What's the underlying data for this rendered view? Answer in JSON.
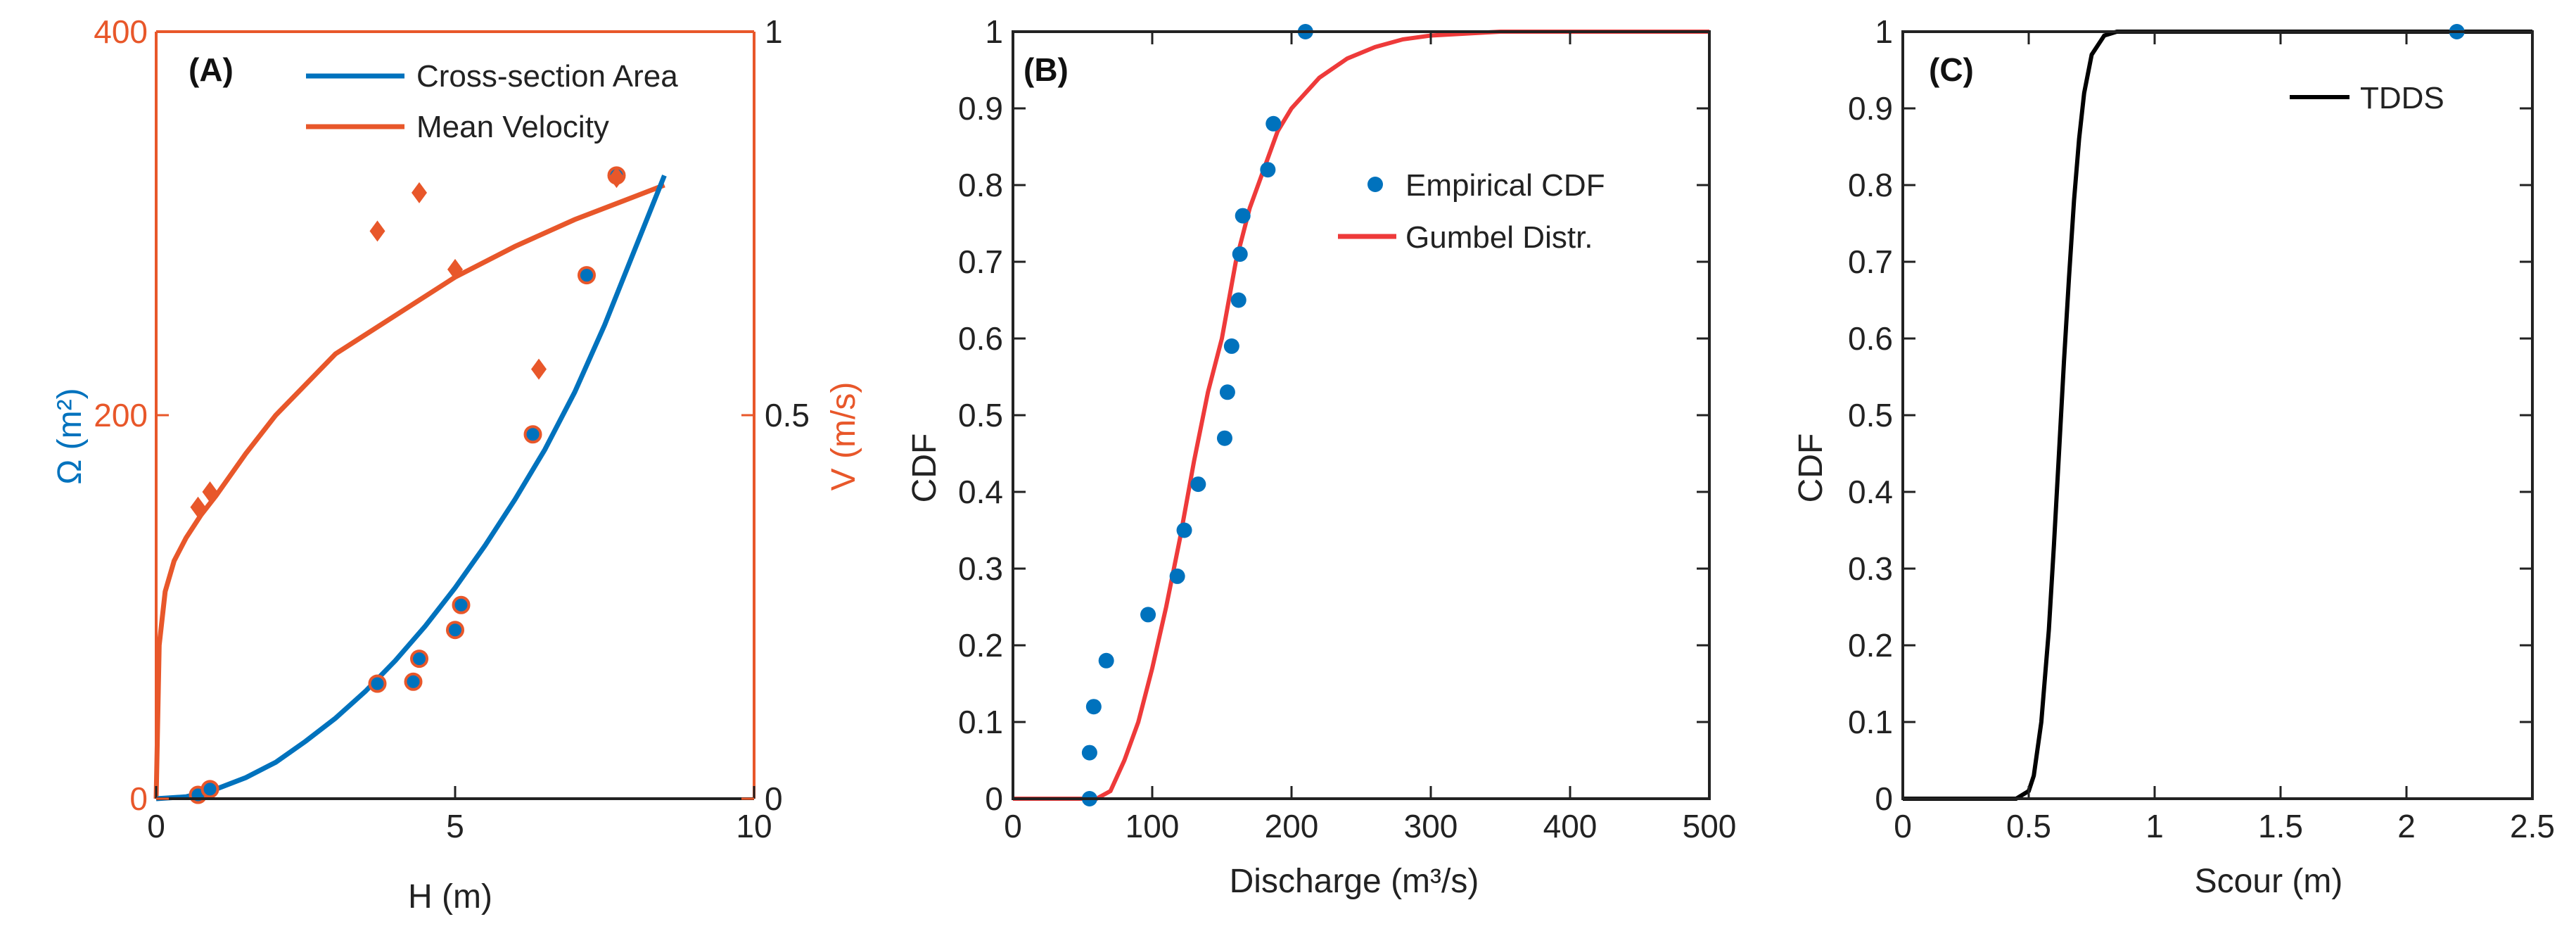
{
  "colors": {
    "blue": "#0072bd",
    "orange": "#e8572a",
    "red": "#ee3a3a",
    "black": "#000000",
    "axis_dark": "#222222"
  },
  "chart_data": [
    {
      "panel": "(A)",
      "type": "line",
      "xlabel": "H (m)",
      "ylabel_left": "Ω (m²)",
      "ylabel_right": "V (m/s)",
      "xlim": [
        0,
        10
      ],
      "ylim_left": [
        0,
        400
      ],
      "ylim_right": [
        0,
        1
      ],
      "xticks": [
        "0",
        "5",
        "10"
      ],
      "yticks_left": [
        "0",
        "200",
        "400"
      ],
      "yticks_right": [
        "0",
        "0.5",
        "1"
      ],
      "legend_position": "top-right",
      "series": [
        {
          "name": "Cross-section Area",
          "axis": "left",
          "color": "#0072bd",
          "x": [
            0.0,
            0.5,
            1.0,
            1.5,
            2.0,
            2.5,
            3.0,
            3.5,
            4.0,
            4.5,
            5.0,
            5.5,
            6.0,
            6.5,
            7.0,
            7.5,
            8.0,
            8.5
          ],
          "values": [
            0,
            1,
            5,
            11,
            19,
            30,
            42,
            56,
            72,
            90,
            110,
            132,
            156,
            182,
            212,
            247,
            286,
            325
          ]
        },
        {
          "name": "Mean Velocity",
          "axis": "right",
          "color": "#e8572a",
          "x": [
            0.0,
            0.05,
            0.15,
            0.3,
            0.5,
            0.75,
            1.0,
            1.5,
            2.0,
            2.5,
            3.0,
            4.0,
            5.0,
            6.0,
            7.0,
            8.0,
            8.5
          ],
          "values": [
            0.0,
            0.2,
            0.27,
            0.31,
            0.34,
            0.37,
            0.395,
            0.45,
            0.5,
            0.54,
            0.58,
            0.63,
            0.68,
            0.72,
            0.755,
            0.785,
            0.8
          ]
        }
      ],
      "area_points": {
        "x": [
          0.7,
          0.9,
          3.7,
          4.3,
          4.4,
          5.0,
          5.1,
          6.3,
          7.2,
          7.7
        ],
        "y": [
          2,
          5,
          60,
          61,
          73,
          88,
          101,
          190,
          273,
          325
        ]
      },
      "velocity_points": {
        "x": [
          0.7,
          0.9,
          3.7,
          4.4,
          5.0,
          6.4,
          7.7
        ],
        "y": [
          0.38,
          0.4,
          0.74,
          0.79,
          0.69,
          0.56,
          0.81
        ]
      },
      "legend": [
        "Cross-section Area",
        "Mean Velocity"
      ]
    },
    {
      "panel": "(B)",
      "type": "line",
      "xlabel": "Discharge (m³/s)",
      "ylabel": "CDF",
      "xlim": [
        0,
        500
      ],
      "ylim": [
        0,
        1
      ],
      "xticks": [
        "0",
        "100",
        "200",
        "300",
        "400",
        "500"
      ],
      "yticks": [
        "0",
        "0.1",
        "0.2",
        "0.3",
        "0.4",
        "0.5",
        "0.6",
        "0.7",
        "0.8",
        "0.9",
        "1"
      ],
      "legend_position": "center-right",
      "series": [
        {
          "name": "Gumbel Distr.",
          "color": "#ee3a3a",
          "x": [
            0,
            50,
            60,
            70,
            80,
            90,
            100,
            110,
            120,
            130,
            140,
            150,
            160,
            170,
            180,
            190,
            200,
            220,
            240,
            260,
            280,
            300,
            350,
            400,
            450,
            500
          ],
          "values": [
            0,
            0,
            0.0,
            0.01,
            0.05,
            0.1,
            0.17,
            0.25,
            0.34,
            0.44,
            0.53,
            0.6,
            0.7,
            0.77,
            0.82,
            0.87,
            0.9,
            0.94,
            0.965,
            0.98,
            0.99,
            0.995,
            1,
            1,
            1,
            1
          ]
        }
      ],
      "empirical": {
        "name": "Empirical CDF",
        "color": "#0072bd",
        "x": [
          55,
          55,
          58,
          67,
          97,
          118,
          123,
          133,
          152,
          154,
          157,
          162,
          163,
          165,
          183,
          187,
          210
        ],
        "y": [
          0.0,
          0.06,
          0.12,
          0.18,
          0.24,
          0.29,
          0.35,
          0.41,
          0.47,
          0.53,
          0.59,
          0.65,
          0.71,
          0.76,
          0.82,
          0.88,
          1.0
        ]
      },
      "legend": [
        "Gumbel Distr.",
        "Empirical CDF"
      ]
    },
    {
      "panel": "(C)",
      "type": "line",
      "xlabel": "Scour (m)",
      "ylabel": "CDF",
      "xlim": [
        0,
        2.5
      ],
      "ylim": [
        0,
        1
      ],
      "xticks": [
        "0",
        "0.5",
        "1",
        "1.5",
        "2",
        "2.5"
      ],
      "yticks": [
        "0",
        "0.1",
        "0.2",
        "0.3",
        "0.4",
        "0.5",
        "0.6",
        "0.7",
        "0.8",
        "0.9",
        "1"
      ],
      "legend_position": "top-right",
      "series": [
        {
          "name": "TDDS",
          "color": "#000000",
          "x": [
            0,
            0.45,
            0.5,
            0.52,
            0.55,
            0.58,
            0.6,
            0.62,
            0.64,
            0.66,
            0.68,
            0.7,
            0.72,
            0.75,
            0.8,
            0.85,
            1.0,
            2.5
          ],
          "values": [
            0,
            0,
            0.01,
            0.03,
            0.1,
            0.22,
            0.33,
            0.45,
            0.57,
            0.68,
            0.78,
            0.86,
            0.92,
            0.97,
            0.995,
            1,
            1,
            1
          ]
        }
      ],
      "marker_point": {
        "x": 2.2,
        "y": 1.0,
        "color": "#0072bd"
      },
      "legend": [
        "TDDS"
      ]
    }
  ]
}
